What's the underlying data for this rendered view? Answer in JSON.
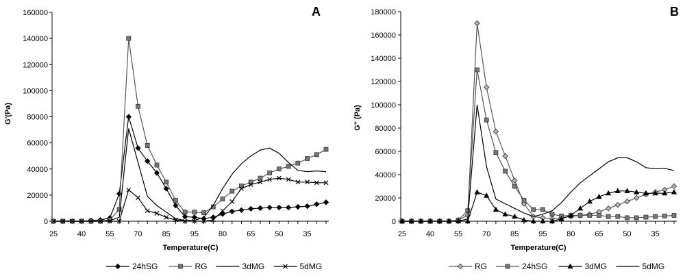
{
  "chart_data": [
    {
      "type": "line",
      "panel": "A",
      "xlabel": "Temperature(C)",
      "ylabel": "G'(Pa)",
      "ylim": [
        0,
        160000
      ],
      "yticks": [
        "0",
        "20000",
        "40000",
        "60000",
        "80000",
        "100000",
        "120000",
        "140000",
        "160000"
      ],
      "xtick_labels": [
        "25",
        "40",
        "55",
        "70",
        "85",
        "95",
        "80",
        "65",
        "50",
        "35"
      ],
      "series": [
        {
          "name": "24hSG",
          "marker": "diamond",
          "color": "#000000",
          "values": [
            0,
            0,
            0,
            0,
            500,
            1000,
            2500,
            21000,
            80000,
            56000,
            46000,
            37000,
            25000,
            12000,
            3500,
            3000,
            2000,
            3000,
            5500,
            7500,
            8500,
            9500,
            10000,
            10500,
            10500,
            10500,
            11000,
            11500,
            13000,
            14500
          ]
        },
        {
          "name": "RG",
          "marker": "square",
          "color": "#555555",
          "values": [
            0,
            0,
            0,
            0,
            0,
            0,
            1000,
            9000,
            140000,
            88000,
            58000,
            43000,
            30000,
            16000,
            7000,
            7000,
            6500,
            11000,
            17000,
            23000,
            27000,
            30000,
            33000,
            37000,
            40000,
            42000,
            44500,
            48000,
            51000,
            55000
          ]
        },
        {
          "name": "3dMG",
          "marker": "none",
          "color": "#000000",
          "values": [
            0,
            0,
            0,
            0,
            0,
            0,
            500,
            3000,
            71000,
            45000,
            19000,
            12000,
            7000,
            2000,
            500,
            500,
            3000,
            12000,
            25000,
            36000,
            44000,
            50000,
            54500,
            56000,
            52000,
            45000,
            39000,
            38000,
            38500,
            38000
          ]
        },
        {
          "name": "5dMG",
          "marker": "x",
          "color": "#000000",
          "values": [
            0,
            0,
            0,
            0,
            0,
            0,
            0,
            0,
            24000,
            18000,
            8000,
            6000,
            3000,
            1000,
            0,
            0,
            0,
            1000,
            8000,
            15000,
            25000,
            28000,
            30000,
            32000,
            33000,
            32000,
            30000,
            30000,
            29500,
            29500
          ]
        }
      ]
    },
    {
      "type": "line",
      "panel": "B",
      "xlabel": "Temperature(C)",
      "ylabel": "G'' (Pa)",
      "ylim": [
        0,
        180000
      ],
      "yticks": [
        "0",
        "20000",
        "40000",
        "60000",
        "80000",
        "100000",
        "120000",
        "140000",
        "160000",
        "180000"
      ],
      "xtick_labels": [
        "25",
        "40",
        "55",
        "70",
        "85",
        "95",
        "80",
        "65",
        "50",
        "35"
      ],
      "series": [
        {
          "name": "RG",
          "marker": "diamond-open",
          "color": "#555555",
          "values": [
            0,
            0,
            0,
            0,
            0,
            0,
            1000,
            5000,
            170000,
            115000,
            77000,
            56000,
            35000,
            15000,
            4000,
            3000,
            2000,
            3000,
            4000,
            5000,
            6000,
            8000,
            11000,
            14000,
            17000,
            20000,
            23000,
            25000,
            27000,
            30000
          ]
        },
        {
          "name": "24hSG",
          "marker": "square",
          "color": "#555555",
          "values": [
            0,
            0,
            0,
            0,
            0,
            0,
            1000,
            9000,
            130000,
            87000,
            59000,
            43000,
            30000,
            18000,
            10000,
            10000,
            6000,
            4500,
            5000,
            5000,
            5000,
            5000,
            4000,
            4000,
            3000,
            3000,
            3500,
            4000,
            4500,
            5000
          ]
        },
        {
          "name": "3dMG",
          "marker": "triangle",
          "color": "#000000",
          "values": [
            0,
            0,
            0,
            0,
            0,
            0,
            0,
            0,
            25000,
            22000,
            10000,
            6000,
            4000,
            1000,
            0,
            0,
            0,
            2000,
            5000,
            11000,
            17000,
            21000,
            24000,
            26000,
            26000,
            25000,
            24000,
            24000,
            24000,
            25000
          ]
        },
        {
          "name": "5dMG",
          "marker": "none",
          "color": "#000000",
          "values": [
            0,
            0,
            0,
            0,
            0,
            0,
            0,
            2000,
            100000,
            47000,
            19000,
            15000,
            11000,
            7000,
            4000,
            6000,
            9000,
            16000,
            25000,
            33000,
            39000,
            45000,
            51000,
            54500,
            54500,
            51000,
            46000,
            45000,
            45500,
            43500
          ]
        }
      ]
    }
  ]
}
